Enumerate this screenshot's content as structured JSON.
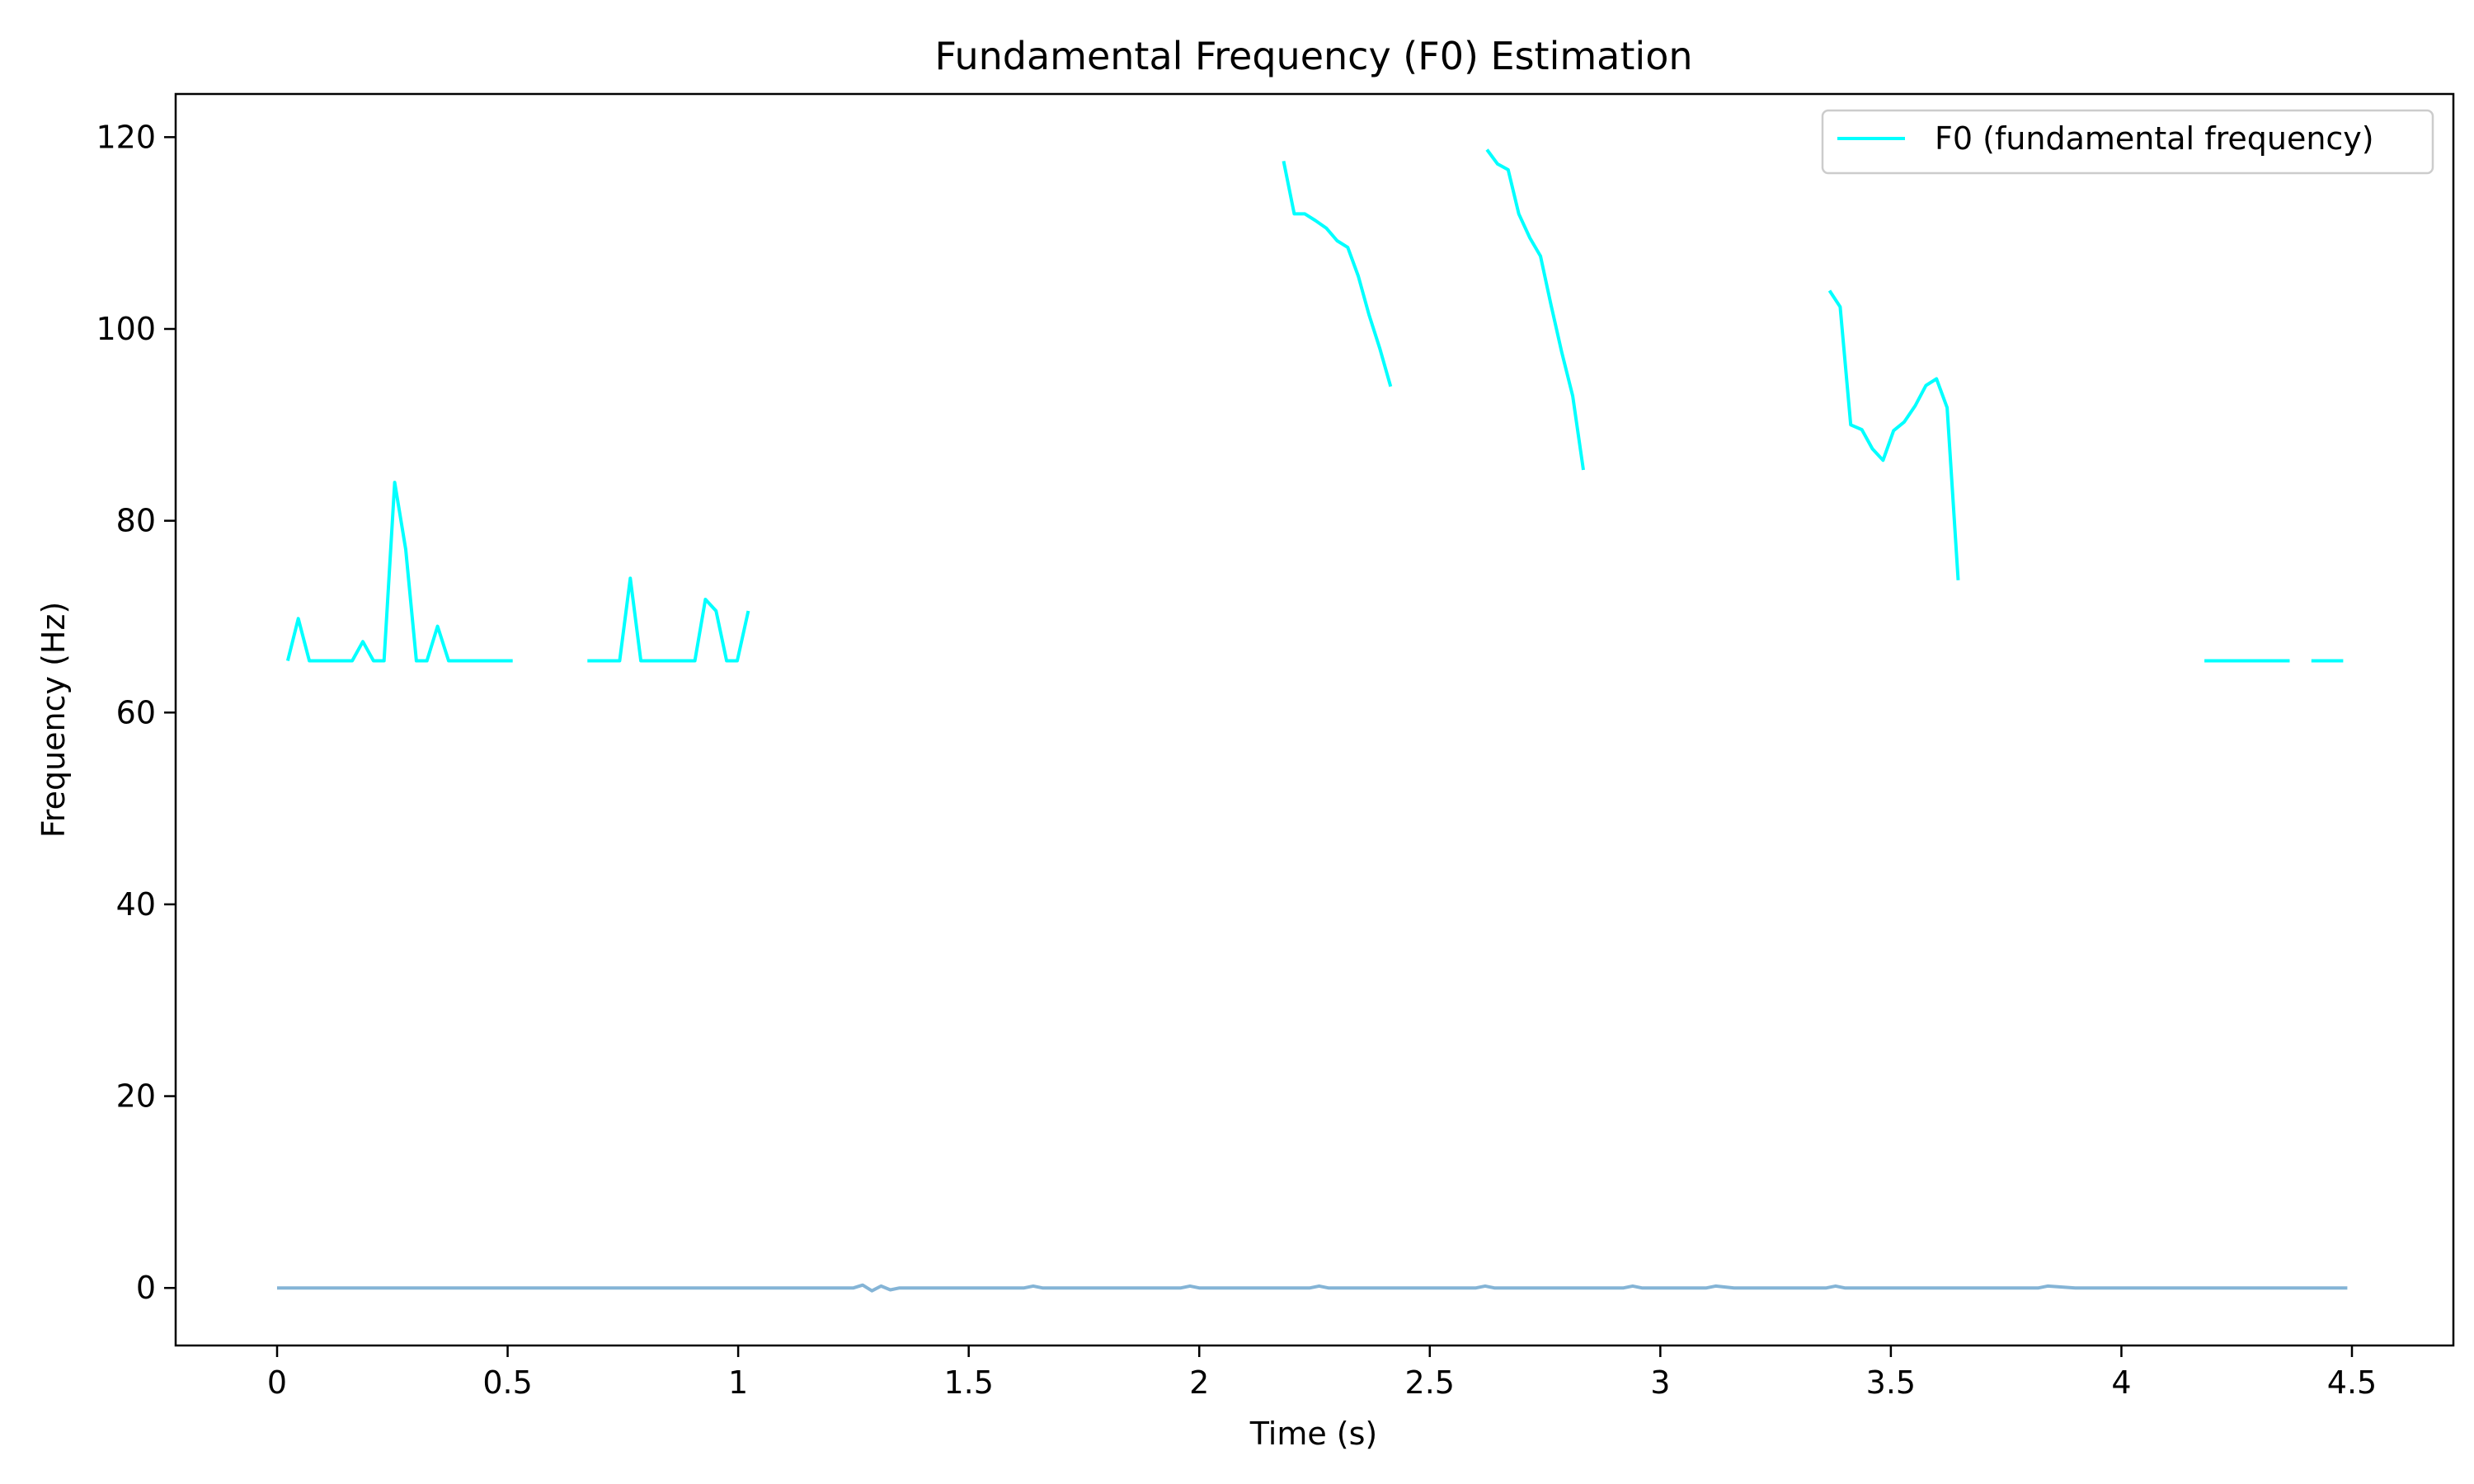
{
  "chart_data": {
    "type": "line",
    "title": "Fundamental Frequency (F0) Estimation",
    "xlabel": "Time (s)",
    "ylabel": "Frequency (Hz)",
    "xlim": [
      -0.22,
      4.72
    ],
    "ylim": [
      -6,
      124.5
    ],
    "xticks": [
      0,
      0.5,
      1,
      1.5,
      2,
      2.5,
      3,
      3.5,
      4,
      4.5
    ],
    "xtick_labels": [
      "0",
      "0.5",
      "1",
      "1.5",
      "2",
      "2.5",
      "3",
      "3.5",
      "4",
      "4.5"
    ],
    "yticks": [
      0,
      20,
      40,
      60,
      80,
      100,
      120
    ],
    "ytick_labels": [
      "0",
      "20",
      "40",
      "60",
      "80",
      "100",
      "120"
    ],
    "grid": false,
    "legend_position": "top-right",
    "series": [
      {
        "name": "F0 (fundamental frequency)",
        "color": "#00ffff",
        "segments": [
          [
            [
              0.023,
              65.4
            ],
            [
              0.046,
              69.8
            ],
            [
              0.07,
              65.4
            ],
            [
              0.093,
              65.4
            ],
            [
              0.116,
              65.4
            ],
            [
              0.139,
              65.4
            ],
            [
              0.163,
              65.4
            ],
            [
              0.186,
              67.4
            ],
            [
              0.209,
              65.4
            ],
            [
              0.232,
              65.4
            ],
            [
              0.255,
              84.0
            ],
            [
              0.279,
              77.0
            ],
            [
              0.302,
              65.4
            ],
            [
              0.325,
              65.4
            ],
            [
              0.348,
              69.0
            ],
            [
              0.372,
              65.4
            ],
            [
              0.395,
              65.4
            ],
            [
              0.418,
              65.4
            ],
            [
              0.441,
              65.4
            ],
            [
              0.464,
              65.4
            ],
            [
              0.488,
              65.4
            ],
            [
              0.511,
              65.4
            ]
          ],
          [
            [
              0.673,
              65.4
            ],
            [
              0.697,
              65.4
            ],
            [
              0.72,
              65.4
            ],
            [
              0.743,
              65.4
            ],
            [
              0.766,
              74.0
            ],
            [
              0.789,
              65.4
            ],
            [
              0.813,
              65.4
            ],
            [
              0.836,
              65.4
            ],
            [
              0.859,
              65.4
            ],
            [
              0.882,
              65.4
            ],
            [
              0.906,
              65.4
            ],
            [
              0.929,
              71.8
            ],
            [
              0.952,
              70.6
            ],
            [
              0.975,
              65.4
            ],
            [
              0.998,
              65.4
            ],
            [
              1.022,
              70.6
            ]
          ],
          [
            [
              2.183,
              117.5
            ],
            [
              2.206,
              112.0
            ],
            [
              2.229,
              112.0
            ],
            [
              2.252,
              111.3
            ],
            [
              2.276,
              110.5
            ],
            [
              2.299,
              109.2
            ],
            [
              2.322,
              108.5
            ],
            [
              2.345,
              105.5
            ],
            [
              2.368,
              101.5
            ],
            [
              2.392,
              97.9
            ],
            [
              2.415,
              94.0
            ]
          ],
          [
            [
              2.624,
              118.7
            ],
            [
              2.647,
              117.2
            ],
            [
              2.67,
              116.6
            ],
            [
              2.693,
              112.0
            ],
            [
              2.717,
              109.5
            ],
            [
              2.74,
              107.6
            ],
            [
              2.763,
              102.5
            ],
            [
              2.786,
              97.6
            ],
            [
              2.81,
              93.0
            ],
            [
              2.833,
              85.3
            ]
          ],
          [
            [
              3.367,
              104.0
            ],
            [
              3.39,
              102.3
            ],
            [
              3.413,
              90.0
            ],
            [
              3.437,
              89.5
            ],
            [
              3.46,
              87.5
            ],
            [
              3.483,
              86.3
            ],
            [
              3.506,
              89.4
            ],
            [
              3.529,
              90.3
            ],
            [
              3.553,
              92.0
            ],
            [
              3.576,
              94.1
            ],
            [
              3.599,
              94.8
            ],
            [
              3.622,
              91.8
            ],
            [
              3.646,
              73.8
            ]
          ],
          [
            [
              4.18,
              65.4
            ],
            [
              4.203,
              65.4
            ],
            [
              4.226,
              65.4
            ],
            [
              4.249,
              65.4
            ],
            [
              4.272,
              65.4
            ],
            [
              4.296,
              65.4
            ],
            [
              4.319,
              65.4
            ],
            [
              4.342,
              65.4
            ],
            [
              4.365,
              65.4
            ]
          ],
          [
            [
              4.412,
              65.4
            ],
            [
              4.435,
              65.4
            ],
            [
              4.458,
              65.4
            ],
            [
              4.481,
              65.4
            ]
          ]
        ]
      },
      {
        "color": "#1f77b4",
        "opacity": 0.55,
        "segments": [
          [
            [
              0,
              0.0
            ],
            [
              1.25,
              0.0
            ],
            [
              1.27,
              0.3
            ],
            [
              1.29,
              -0.3
            ],
            [
              1.31,
              0.2
            ],
            [
              1.33,
              -0.2
            ],
            [
              1.35,
              0.0
            ],
            [
              1.62,
              0.0
            ],
            [
              1.64,
              0.2
            ],
            [
              1.66,
              0.0
            ],
            [
              1.96,
              0.0
            ],
            [
              1.98,
              0.2
            ],
            [
              2.0,
              0.0
            ],
            [
              2.24,
              0.0
            ],
            [
              2.26,
              0.2
            ],
            [
              2.28,
              0.0
            ],
            [
              2.6,
              0.0
            ],
            [
              2.62,
              0.2
            ],
            [
              2.64,
              0.0
            ],
            [
              2.92,
              0.0
            ],
            [
              2.94,
              0.2
            ],
            [
              2.96,
              0.0
            ],
            [
              3.1,
              0.0
            ],
            [
              3.12,
              0.2
            ],
            [
              3.16,
              0.0
            ],
            [
              3.36,
              0.0
            ],
            [
              3.38,
              0.2
            ],
            [
              3.4,
              0.0
            ],
            [
              3.82,
              0.0
            ],
            [
              3.84,
              0.2
            ],
            [
              3.9,
              0.0
            ],
            [
              4.49,
              0.0
            ]
          ]
        ]
      }
    ]
  }
}
